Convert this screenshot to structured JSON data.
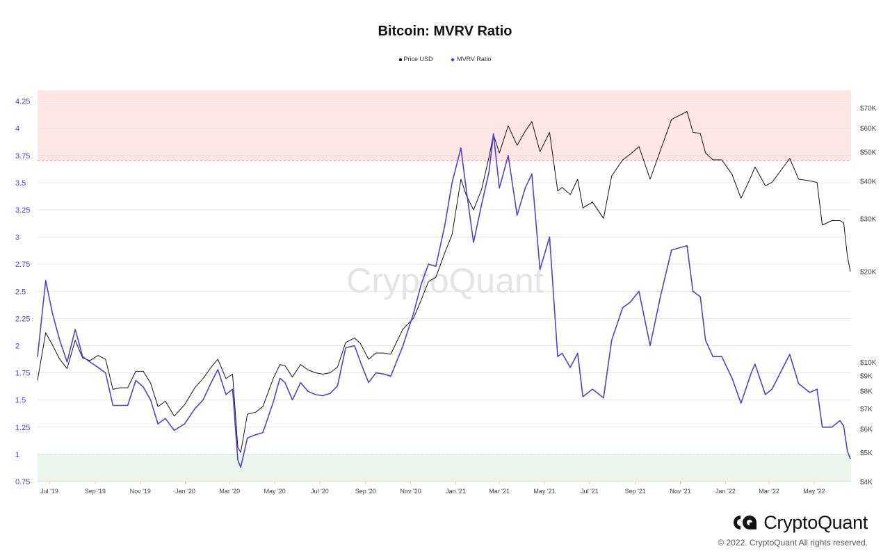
{
  "chart_data": {
    "type": "line",
    "title": "Bitcoin: MVRV Ratio",
    "legend": {
      "placement": "top-center",
      "items": [
        "Price USD",
        "MVRV Ratio"
      ]
    },
    "watermark": "CryptoQuant",
    "x_ticks": [
      "Jul '19",
      "Sep '19",
      "Nov '19",
      "Jan '20",
      "Mar '20",
      "May '20",
      "Jul '20",
      "Sep '20",
      "Nov '20",
      "Jan '21",
      "Mar '21",
      "May '21",
      "Jul '21",
      "Sep '21",
      "Nov '21",
      "Jan '22",
      "Mar '22",
      "May '22"
    ],
    "y_left": {
      "ticks": [
        "0.75",
        "1",
        "1.25",
        "1.5",
        "1.75",
        "2",
        "2.25",
        "2.5",
        "2.75",
        "3",
        "3.25",
        "3.5",
        "3.75",
        "4",
        "4.25"
      ],
      "range": [
        0.75,
        4.35
      ],
      "color": "#4f3fe0"
    },
    "y_right": {
      "ticks": [
        "$4K",
        "$5K",
        "$6K",
        "$7K",
        "$8K",
        "$9K",
        "$10K",
        "$20K",
        "$30K",
        "$40K",
        "$50K",
        "$60K",
        "$70K"
      ],
      "scale": "log",
      "range": [
        4000,
        80000
      ]
    },
    "bands": {
      "overvalued_above": 3.7,
      "undervalued_below": 1.0,
      "overvalued_color": "#fde6e3",
      "undervalued_color": "#eaf5ec"
    },
    "series": [
      {
        "name": "Price USD",
        "color": "#111111",
        "axis": "right",
        "x": [
          "2019-06-15",
          "2019-06-26",
          "2019-07-05",
          "2019-07-15",
          "2019-07-25",
          "2019-08-05",
          "2019-08-15",
          "2019-08-25",
          "2019-09-05",
          "2019-09-15",
          "2019-09-25",
          "2019-10-05",
          "2019-10-15",
          "2019-10-26",
          "2019-11-05",
          "2019-11-15",
          "2019-11-25",
          "2019-12-05",
          "2019-12-17",
          "2019-12-31",
          "2020-01-14",
          "2020-01-25",
          "2020-02-05",
          "2020-02-14",
          "2020-02-25",
          "2020-03-05",
          "2020-03-12",
          "2020-03-16",
          "2020-03-25",
          "2020-04-05",
          "2020-04-15",
          "2020-04-29",
          "2020-05-08",
          "2020-05-15",
          "2020-05-25",
          "2020-06-05",
          "2020-06-15",
          "2020-06-25",
          "2020-07-05",
          "2020-07-15",
          "2020-07-25",
          "2020-08-05",
          "2020-08-17",
          "2020-08-25",
          "2020-09-05",
          "2020-09-15",
          "2020-09-25",
          "2020-10-05",
          "2020-10-21",
          "2020-11-05",
          "2020-11-15",
          "2020-11-25",
          "2020-12-05",
          "2020-12-17",
          "2020-12-27",
          "2021-01-08",
          "2021-01-15",
          "2021-01-25",
          "2021-02-05",
          "2021-02-15",
          "2021-02-21",
          "2021-03-01",
          "2021-03-13",
          "2021-03-25",
          "2021-04-05",
          "2021-04-14",
          "2021-04-25",
          "2021-05-08",
          "2021-05-19",
          "2021-05-25",
          "2021-06-05",
          "2021-06-15",
          "2021-06-22",
          "2021-07-05",
          "2021-07-20",
          "2021-07-31",
          "2021-08-15",
          "2021-08-25",
          "2021-09-06",
          "2021-09-21",
          "2021-10-05",
          "2021-10-20",
          "2021-11-10",
          "2021-11-18",
          "2021-11-28",
          "2021-12-05",
          "2021-12-15",
          "2021-12-27",
          "2022-01-10",
          "2022-01-22",
          "2022-02-05",
          "2022-02-10",
          "2022-02-24",
          "2022-03-05",
          "2022-03-29",
          "2022-04-10",
          "2022-04-25",
          "2022-05-05",
          "2022-05-12",
          "2022-05-25",
          "2022-06-05",
          "2022-06-10",
          "2022-06-15",
          "2022-06-19"
        ],
        "y": [
          8700,
          12500,
          11400,
          10200,
          9500,
          11800,
          10300,
          10100,
          10500,
          10200,
          8100,
          8200,
          8200,
          9300,
          9300,
          8500,
          7100,
          7400,
          6600,
          7200,
          8200,
          8800,
          9600,
          10200,
          8800,
          9100,
          5200,
          5000,
          6700,
          6800,
          7100,
          8800,
          9800,
          9700,
          8900,
          9800,
          9400,
          9200,
          9100,
          9200,
          9600,
          11600,
          12000,
          11500,
          10200,
          10700,
          10700,
          10600,
          12800,
          14000,
          16000,
          18500,
          19100,
          23000,
          26500,
          40500,
          36000,
          32000,
          37500,
          48000,
          57000,
          49500,
          61000,
          52500,
          58500,
          63000,
          50000,
          58000,
          37000,
          38000,
          36000,
          40500,
          32500,
          34000,
          30000,
          41500,
          47000,
          49000,
          52000,
          40500,
          50500,
          64000,
          68000,
          58000,
          57500,
          49500,
          47000,
          47000,
          42000,
          35000,
          41500,
          44500,
          38500,
          39500,
          47500,
          40500,
          40000,
          39500,
          28500,
          29500,
          29500,
          29000,
          22500,
          20000
        ]
      },
      {
        "name": "MVRV Ratio",
        "color": "#4f3fe0",
        "axis": "left",
        "x": [
          "2019-06-15",
          "2019-06-26",
          "2019-07-05",
          "2019-07-15",
          "2019-07-25",
          "2019-08-05",
          "2019-08-15",
          "2019-08-25",
          "2019-09-05",
          "2019-09-15",
          "2019-09-25",
          "2019-10-05",
          "2019-10-15",
          "2019-10-26",
          "2019-11-05",
          "2019-11-15",
          "2019-11-25",
          "2019-12-05",
          "2019-12-17",
          "2019-12-31",
          "2020-01-14",
          "2020-01-25",
          "2020-02-05",
          "2020-02-14",
          "2020-02-25",
          "2020-03-05",
          "2020-03-12",
          "2020-03-16",
          "2020-03-25",
          "2020-04-05",
          "2020-04-15",
          "2020-04-29",
          "2020-05-08",
          "2020-05-15",
          "2020-05-25",
          "2020-06-05",
          "2020-06-15",
          "2020-06-25",
          "2020-07-05",
          "2020-07-15",
          "2020-07-25",
          "2020-08-05",
          "2020-08-17",
          "2020-08-25",
          "2020-09-05",
          "2020-09-15",
          "2020-09-25",
          "2020-10-05",
          "2020-10-21",
          "2020-11-05",
          "2020-11-15",
          "2020-11-25",
          "2020-12-05",
          "2020-12-17",
          "2020-12-27",
          "2021-01-08",
          "2021-01-15",
          "2021-01-25",
          "2021-02-05",
          "2021-02-15",
          "2021-02-21",
          "2021-03-01",
          "2021-03-13",
          "2021-03-25",
          "2021-04-05",
          "2021-04-14",
          "2021-04-25",
          "2021-05-08",
          "2021-05-19",
          "2021-05-25",
          "2021-06-05",
          "2021-06-15",
          "2021-06-22",
          "2021-07-05",
          "2021-07-20",
          "2021-07-31",
          "2021-08-15",
          "2021-08-25",
          "2021-09-06",
          "2021-09-21",
          "2021-10-05",
          "2021-10-20",
          "2021-11-10",
          "2021-11-18",
          "2021-11-28",
          "2021-12-05",
          "2021-12-15",
          "2021-12-27",
          "2022-01-10",
          "2022-01-22",
          "2022-02-05",
          "2022-02-10",
          "2022-02-24",
          "2022-03-05",
          "2022-03-29",
          "2022-04-10",
          "2022-04-25",
          "2022-05-05",
          "2022-05-12",
          "2022-05-25",
          "2022-06-05",
          "2022-06-10",
          "2022-06-15",
          "2022-06-19"
        ],
        "y": [
          1.9,
          2.6,
          2.3,
          2.05,
          1.85,
          2.15,
          1.9,
          1.85,
          1.8,
          1.75,
          1.45,
          1.45,
          1.45,
          1.68,
          1.62,
          1.5,
          1.28,
          1.33,
          1.22,
          1.28,
          1.42,
          1.5,
          1.66,
          1.78,
          1.55,
          1.6,
          0.95,
          0.88,
          1.15,
          1.18,
          1.2,
          1.48,
          1.7,
          1.66,
          1.5,
          1.66,
          1.58,
          1.55,
          1.54,
          1.56,
          1.63,
          1.98,
          2.0,
          1.85,
          1.66,
          1.75,
          1.74,
          1.72,
          1.99,
          2.3,
          2.56,
          2.75,
          2.73,
          3.1,
          3.5,
          3.82,
          3.45,
          2.95,
          3.3,
          3.6,
          3.95,
          3.45,
          3.75,
          3.2,
          3.45,
          3.58,
          2.7,
          3.0,
          1.9,
          1.93,
          1.8,
          1.93,
          1.53,
          1.6,
          1.52,
          2.05,
          2.35,
          2.4,
          2.5,
          2.0,
          2.45,
          2.88,
          2.92,
          2.5,
          2.45,
          2.05,
          1.9,
          1.9,
          1.7,
          1.47,
          1.75,
          1.83,
          1.55,
          1.6,
          1.92,
          1.65,
          1.57,
          1.6,
          1.25,
          1.25,
          1.31,
          1.26,
          1.03,
          0.96
        ]
      }
    ]
  },
  "brand": {
    "name": "CryptoQuant",
    "copyright": "© 2022. CryptoQuant All rights reserved."
  }
}
